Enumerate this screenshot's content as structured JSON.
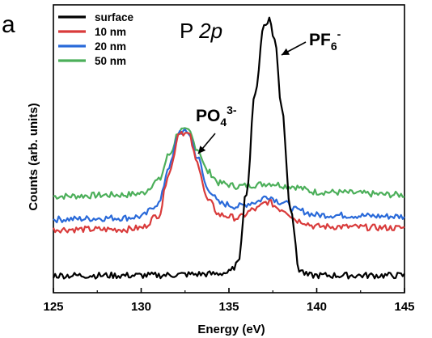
{
  "panel_label": "a",
  "chart_data": {
    "type": "line",
    "title_main": "P ",
    "title_italic": "2p",
    "xlabel": "Energy (eV)",
    "ylabel": "Counts (arb. units)",
    "xlim": [
      125,
      145
    ],
    "ylim": [
      0,
      1
    ],
    "xticks": [
      125,
      130,
      135,
      140,
      145
    ],
    "yticks": [],
    "grid": false,
    "legend_position": "top-left",
    "series": [
      {
        "name": "surface",
        "color": "#000000",
        "points": [
          [
            125,
            0.06
          ],
          [
            130,
            0.06
          ],
          [
            134,
            0.065
          ],
          [
            135,
            0.07
          ],
          [
            135.5,
            0.1
          ],
          [
            136,
            0.35
          ],
          [
            136.5,
            0.7
          ],
          [
            137,
            0.93
          ],
          [
            137.3,
            0.95
          ],
          [
            137.6,
            0.88
          ],
          [
            138,
            0.65
          ],
          [
            138.5,
            0.3
          ],
          [
            139,
            0.08
          ],
          [
            139.5,
            0.06
          ],
          [
            145,
            0.06
          ]
        ]
      },
      {
        "name": "10 nm",
        "color": "#d93b3b",
        "points": [
          [
            125,
            0.22
          ],
          [
            129,
            0.22
          ],
          [
            130,
            0.225
          ],
          [
            131,
            0.27
          ],
          [
            131.6,
            0.42
          ],
          [
            132.2,
            0.56
          ],
          [
            132.7,
            0.55
          ],
          [
            133.2,
            0.45
          ],
          [
            133.8,
            0.32
          ],
          [
            134.5,
            0.27
          ],
          [
            135.5,
            0.26
          ],
          [
            136.5,
            0.29
          ],
          [
            137.2,
            0.315
          ],
          [
            138,
            0.29
          ],
          [
            139,
            0.25
          ],
          [
            140,
            0.23
          ],
          [
            145,
            0.225
          ]
        ]
      },
      {
        "name": "20 nm",
        "color": "#2a6ad9",
        "points": [
          [
            125,
            0.255
          ],
          [
            129,
            0.26
          ],
          [
            130,
            0.265
          ],
          [
            131,
            0.31
          ],
          [
            131.6,
            0.44
          ],
          [
            132.2,
            0.56
          ],
          [
            132.7,
            0.555
          ],
          [
            133.2,
            0.47
          ],
          [
            133.8,
            0.36
          ],
          [
            134.5,
            0.31
          ],
          [
            135.5,
            0.3
          ],
          [
            136.5,
            0.315
          ],
          [
            137.2,
            0.335
          ],
          [
            138,
            0.315
          ],
          [
            139,
            0.285
          ],
          [
            140,
            0.27
          ],
          [
            145,
            0.265
          ]
        ]
      },
      {
        "name": "50 nm",
        "color": "#4caf5a",
        "points": [
          [
            125,
            0.335
          ],
          [
            129,
            0.34
          ],
          [
            130,
            0.345
          ],
          [
            131,
            0.39
          ],
          [
            131.6,
            0.48
          ],
          [
            132.2,
            0.565
          ],
          [
            132.7,
            0.56
          ],
          [
            133.2,
            0.5
          ],
          [
            133.8,
            0.42
          ],
          [
            134.5,
            0.38
          ],
          [
            135.5,
            0.37
          ],
          [
            136.5,
            0.375
          ],
          [
            137.3,
            0.38
          ],
          [
            138.5,
            0.37
          ],
          [
            140,
            0.35
          ],
          [
            145,
            0.34
          ]
        ]
      }
    ],
    "annotations": [
      {
        "id": "pf6",
        "base": "PF",
        "sub": "6",
        "sup": "-",
        "x": 137.3,
        "y": 0.95
      },
      {
        "id": "po4",
        "base": "PO",
        "sub": "4",
        "sup": "3-",
        "x": 132.3,
        "y": 0.56
      }
    ]
  }
}
